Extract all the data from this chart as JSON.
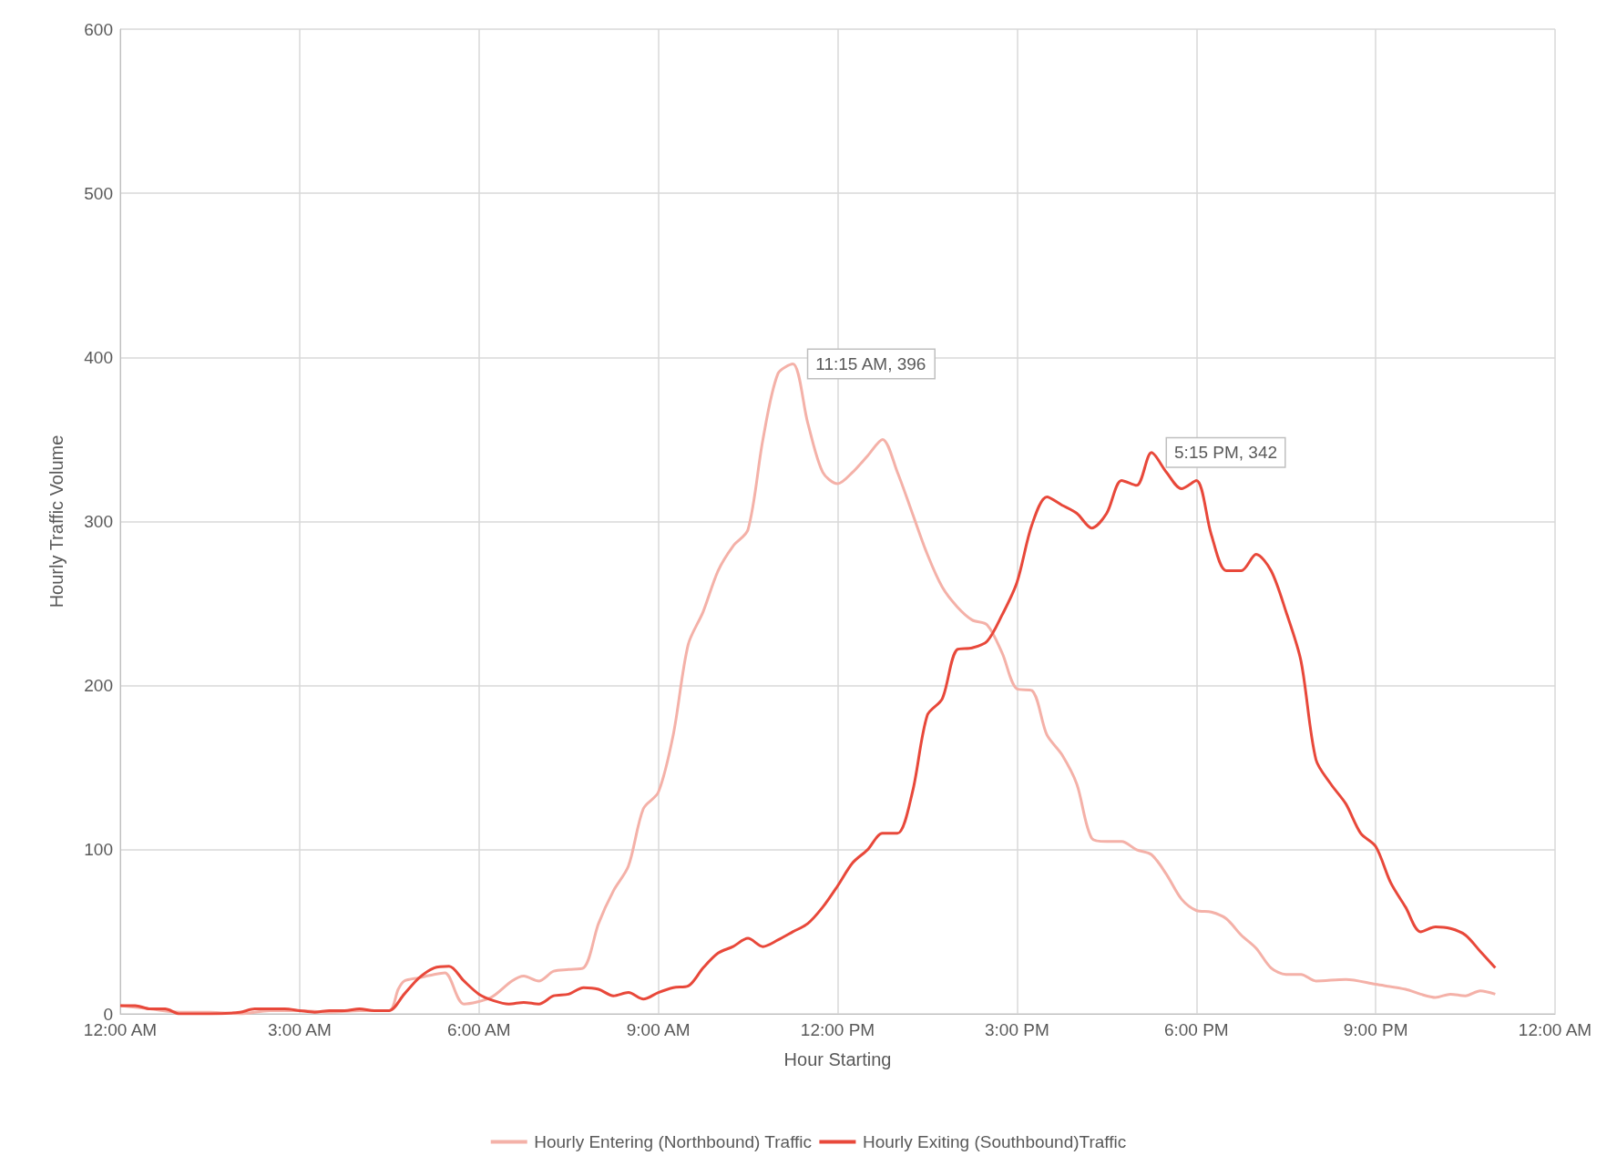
{
  "chart_data": {
    "type": "line",
    "xlabel": "Hour Starting",
    "ylabel": "Hourly Traffic Volume",
    "xlim": [
      0,
      24
    ],
    "ylim": [
      0,
      600
    ],
    "yticks": [
      0,
      100,
      200,
      300,
      400,
      500,
      600
    ],
    "xticks": [
      {
        "value": 0,
        "label": "12:00 AM"
      },
      {
        "value": 3,
        "label": "3:00 AM"
      },
      {
        "value": 6,
        "label": "6:00 AM"
      },
      {
        "value": 9,
        "label": "9:00 AM"
      },
      {
        "value": 12,
        "label": "12:00 PM"
      },
      {
        "value": 15,
        "label": "3:00 PM"
      },
      {
        "value": 18,
        "label": "6:00 PM"
      },
      {
        "value": 21,
        "label": "9:00 PM"
      },
      {
        "value": 24,
        "label": "12:00 AM"
      }
    ],
    "grid": true,
    "legend": "bottom",
    "marker": "none",
    "line_style": "solid",
    "annotations": [
      {
        "text": "11:15 AM, 396",
        "x": 11.25,
        "y": 396
      },
      {
        "text": "5:15 PM, 342",
        "x": 17.25,
        "y": 342
      }
    ],
    "series": [
      {
        "name": "Hourly Entering (Northbound) Traffic",
        "color": "#f4b1a8",
        "x": [
          0,
          0.5,
          1,
          1.5,
          2,
          2.5,
          3,
          3.5,
          4,
          4.5,
          4.65,
          4.75,
          5,
          5.25,
          5.43,
          5.75,
          6.2,
          6.55,
          6.75,
          7,
          7.25,
          7.5,
          7.75,
          8,
          8.25,
          8.5,
          8.75,
          9,
          9.25,
          9.5,
          9.75,
          10,
          10.25,
          10.5,
          10.75,
          11,
          11.25,
          11.5,
          11.75,
          12,
          12.25,
          12.5,
          12.75,
          13,
          13.25,
          13.5,
          13.75,
          14,
          14.25,
          14.5,
          14.75,
          15,
          15.25,
          15.5,
          15.75,
          16,
          16.25,
          16.5,
          16.75,
          17,
          17.25,
          17.5,
          17.75,
          18,
          18.25,
          18.5,
          18.75,
          19,
          19.25,
          19.5,
          19.75,
          20,
          20.5,
          21,
          21.5,
          21.75,
          22,
          22.25,
          22.5,
          22.75,
          23
        ],
        "values": [
          5,
          3,
          1,
          1,
          0,
          2,
          2,
          1,
          2,
          2,
          15,
          20,
          22,
          24,
          25,
          6,
          10,
          20,
          23,
          20,
          26,
          27,
          28,
          55,
          75,
          90,
          125,
          135,
          170,
          225,
          245,
          270,
          285,
          295,
          350,
          390,
          396,
          360,
          330,
          323,
          330,
          340,
          350,
          330,
          305,
          280,
          260,
          248,
          240,
          237,
          220,
          198,
          197,
          170,
          158,
          140,
          107,
          105,
          105,
          100,
          97,
          85,
          70,
          63,
          62,
          58,
          48,
          40,
          28,
          24,
          24,
          20,
          21,
          18,
          15,
          12,
          10,
          12,
          11,
          14,
          12
        ]
      },
      {
        "name": "Hourly Exiting (Southbound)Traffic",
        "color": "#e8483a",
        "x": [
          0,
          0.25,
          0.5,
          0.75,
          1,
          1.5,
          2,
          2.25,
          2.75,
          3,
          3.25,
          3.5,
          3.75,
          4,
          4.25,
          4.5,
          4.75,
          5,
          5.25,
          5.5,
          5.75,
          6,
          6.25,
          6.5,
          6.75,
          7,
          7.25,
          7.5,
          7.75,
          8,
          8.25,
          8.5,
          8.75,
          9,
          9.25,
          9.5,
          9.75,
          10,
          10.25,
          10.5,
          10.75,
          11,
          11.25,
          11.5,
          11.75,
          12,
          12.25,
          12.5,
          12.75,
          13,
          13.25,
          13.5,
          13.75,
          14,
          14.25,
          14.5,
          14.75,
          15,
          15.25,
          15.5,
          15.75,
          16,
          16.25,
          16.5,
          16.75,
          17,
          17.25,
          17.5,
          17.75,
          18,
          18.25,
          18.5,
          18.75,
          19,
          19.25,
          19.5,
          19.75,
          20,
          20.25,
          20.5,
          20.75,
          21,
          21.25,
          21.5,
          21.75,
          22,
          22.25,
          22.5,
          22.75,
          23
        ],
        "values": [
          5,
          5,
          3,
          3,
          0,
          0,
          1,
          3,
          3,
          2,
          1,
          2,
          2,
          3,
          2,
          2,
          12,
          22,
          28,
          29,
          20,
          12,
          8,
          6,
          7,
          6,
          11,
          12,
          16,
          15,
          11,
          13,
          9,
          13,
          16,
          17,
          28,
          37,
          41,
          46,
          41,
          45,
          50,
          55,
          65,
          78,
          92,
          100,
          110,
          110,
          135,
          182,
          192,
          222,
          223,
          227,
          243,
          263,
          298,
          315,
          310,
          305,
          296,
          305,
          325,
          322,
          342,
          330,
          320,
          325,
          292,
          270,
          270,
          280,
          270,
          245,
          215,
          155,
          140,
          128,
          110,
          102,
          80,
          65,
          50,
          53,
          52,
          48,
          38,
          28
        ]
      }
    ]
  }
}
